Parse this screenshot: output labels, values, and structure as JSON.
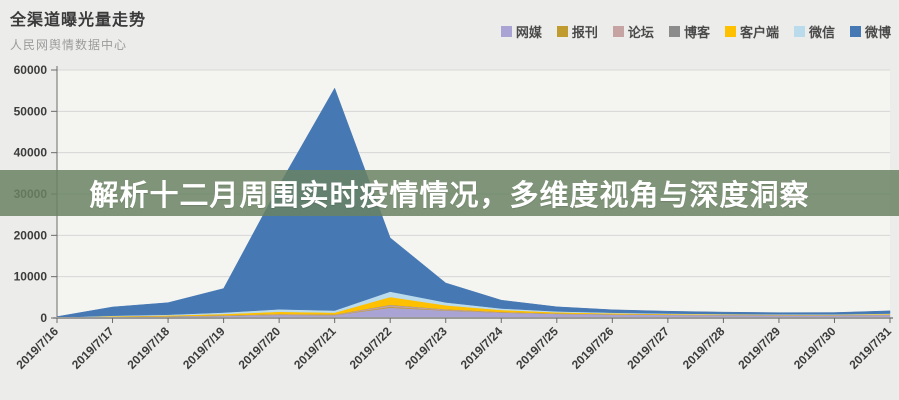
{
  "header": {
    "title": "全渠道曝光量走势",
    "subtitle": "人民网舆情数据中心"
  },
  "banner": {
    "text": "解析十二月周围实时疫情情况，多维度视角与深度洞察"
  },
  "chart_data": {
    "type": "area",
    "stacked": true,
    "title": "全渠道曝光量走势",
    "xlabel": "",
    "ylabel": "",
    "ylim": [
      0,
      60000
    ],
    "ytick_step": 10000,
    "grid": true,
    "legend_position": "top-right",
    "categories": [
      "2019/7/16",
      "2019/7/17",
      "2019/7/18",
      "2019/7/19",
      "2019/7/20",
      "2019/7/21",
      "2019/7/22",
      "2019/7/23",
      "2019/7/24",
      "2019/7/25",
      "2019/7/26",
      "2019/7/27",
      "2019/7/28",
      "2019/7/29",
      "2019/7/30",
      "2019/7/31"
    ],
    "series": [
      {
        "name": "网媒",
        "color": "#a9a4d4",
        "values": [
          60,
          260,
          360,
          520,
          760,
          680,
          2500,
          1800,
          1300,
          1000,
          850,
          760,
          700,
          660,
          660,
          760
        ]
      },
      {
        "name": "报刊",
        "color": "#bf9b30",
        "values": [
          5,
          15,
          25,
          40,
          60,
          50,
          220,
          110,
          55,
          35,
          28,
          22,
          18,
          15,
          15,
          20
        ]
      },
      {
        "name": "论坛",
        "color": "#c7a4a4",
        "values": [
          10,
          30,
          45,
          70,
          100,
          90,
          380,
          170,
          90,
          55,
          42,
          34,
          28,
          24,
          24,
          30
        ]
      },
      {
        "name": "博客",
        "color": "#8c8c8c",
        "values": [
          5,
          10,
          15,
          25,
          40,
          35,
          90,
          45,
          25,
          18,
          14,
          12,
          10,
          9,
          9,
          12
        ]
      },
      {
        "name": "客户端",
        "color": "#ffc000",
        "values": [
          30,
          130,
          180,
          320,
          550,
          450,
          1900,
          950,
          480,
          280,
          200,
          150,
          120,
          100,
          100,
          140
        ]
      },
      {
        "name": "微信",
        "color": "#badbec",
        "values": [
          30,
          120,
          180,
          350,
          600,
          500,
          1300,
          700,
          360,
          220,
          160,
          120,
          100,
          90,
          90,
          120
        ]
      },
      {
        "name": "微博",
        "color": "#4678b4",
        "values": [
          200,
          2100,
          2900,
          5800,
          30000,
          53800,
          13000,
          4700,
          2000,
          1100,
          700,
          550,
          450,
          400,
          420,
          650
        ]
      }
    ],
    "colors": {
      "plot_background": "#f4f4f1",
      "gridline": "#d7d7d5",
      "axis": "#6b6b6b",
      "tick_label": "#3c3c3c",
      "banner_overlay": "rgba(106,131,99,0.85)"
    }
  }
}
